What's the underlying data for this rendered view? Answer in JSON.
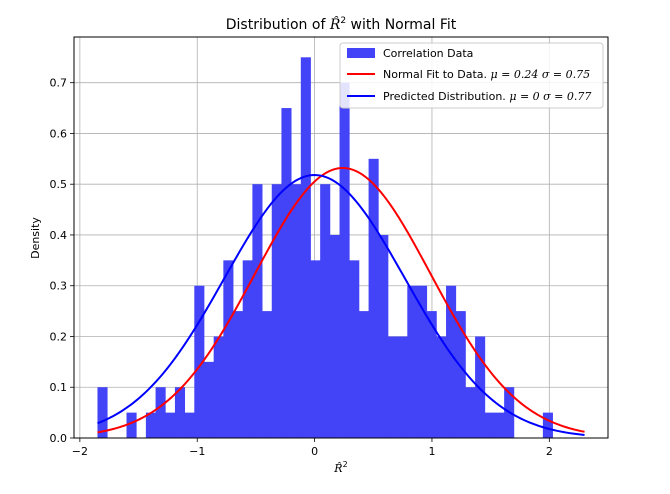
{
  "chart_data": {
    "type": "bar",
    "title": "Distribution of R̂² with Normal Fit",
    "title_parts": {
      "prefix": "Distribution of ",
      "symbol": "R̂",
      "superscript": "2",
      "suffix": " with Normal Fit"
    },
    "xlabel": "R̂²",
    "xlabel_parts": {
      "symbol": "R̂",
      "superscript": "2"
    },
    "ylabel": "Density",
    "xlim": [
      -2.05,
      2.5
    ],
    "ylim": [
      0,
      0.79
    ],
    "xticks": [
      -2,
      -1,
      0,
      1,
      2
    ],
    "xtick_labels": [
      "−2",
      "−1",
      "0",
      "1",
      "2"
    ],
    "yticks": [
      0.0,
      0.1,
      0.2,
      0.3,
      0.4,
      0.5,
      0.6,
      0.7
    ],
    "ytick_labels": [
      "0.0",
      "0.1",
      "0.2",
      "0.3",
      "0.4",
      "0.5",
      "0.6",
      "0.7"
    ],
    "grid": true,
    "legend_position": "top-right",
    "histogram": {
      "name": "Correlation Data",
      "color": "#4343f7",
      "bin_start": -1.85,
      "bin_width": 0.0825,
      "values": [
        0.1,
        0,
        0,
        0.05,
        0,
        0.05,
        0.1,
        0.05,
        0.1,
        0.05,
        0.3,
        0.15,
        0.2,
        0.35,
        0.25,
        0.35,
        0.5,
        0.25,
        0.5,
        0.65,
        0.5,
        0.75,
        0.35,
        0.5,
        0.4,
        0.7,
        0.35,
        0.25,
        0.55,
        0.4,
        0.2,
        0.2,
        0.3,
        0.3,
        0.25,
        0.2,
        0.3,
        0.25,
        0.1,
        0.2,
        0.05,
        0.05,
        0.1,
        0,
        0,
        0,
        0.05
      ]
    },
    "series": [
      {
        "name": "Normal Fit to Data.",
        "mu_label": "μ = 0.24",
        "sigma_label": "σ = 0.75",
        "mu": 0.24,
        "sigma": 0.75,
        "color": "#ff0000",
        "x_range": [
          -1.85,
          2.3
        ]
      },
      {
        "name": "Predicted Distribution.",
        "mu_label": "μ = 0",
        "sigma_label": "σ = 0.77",
        "mu": 0,
        "sigma": 0.77,
        "color": "#0000ff",
        "x_range": [
          -1.85,
          2.3
        ]
      }
    ]
  }
}
